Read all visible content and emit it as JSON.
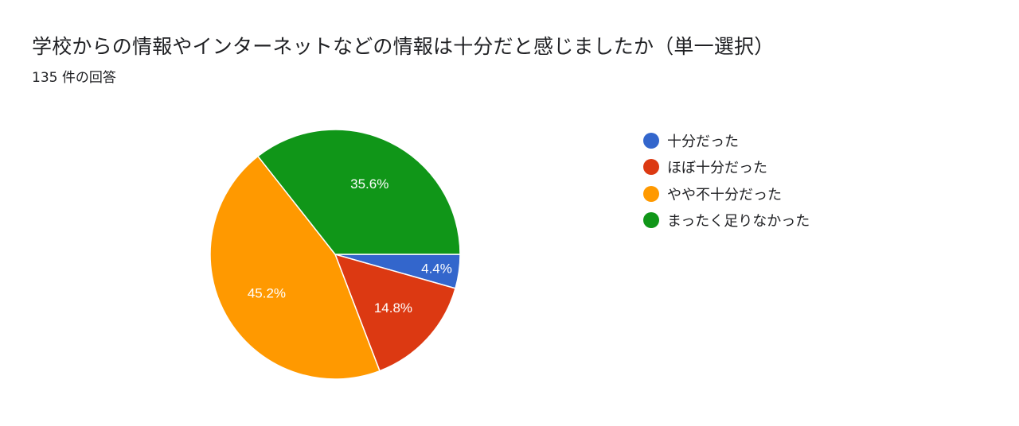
{
  "header": {
    "title": "学校からの情報やインターネットなどの情報は十分だと感じましたか（単一選択）",
    "response_count": "135 件の回答"
  },
  "legend": {
    "items": [
      {
        "label": "十分だった",
        "color": "#3366cc"
      },
      {
        "label": "ほぼ十分だった",
        "color": "#dc3912"
      },
      {
        "label": "やや不十分だった",
        "color": "#ff9900"
      },
      {
        "label": "まったく足りなかった",
        "color": "#109618"
      }
    ]
  },
  "slices": [
    {
      "label": "十分だった",
      "value": 4.4,
      "text": "4.4%",
      "color": "#3366cc"
    },
    {
      "label": "ほぼ十分だった",
      "value": 14.8,
      "text": "14.8%",
      "color": "#dc3912"
    },
    {
      "label": "やや不十分だった",
      "value": 45.2,
      "text": "45.2%",
      "color": "#ff9900"
    },
    {
      "label": "まったく足りなかった",
      "value": 35.6,
      "text": "35.6%",
      "color": "#109618"
    }
  ],
  "chart_data": {
    "type": "pie",
    "title": "学校からの情報やインターネットなどの情報は十分だと感じましたか（単一選択）",
    "subtitle": "135 件の回答",
    "categories": [
      "十分だった",
      "ほぼ十分だった",
      "やや不十分だった",
      "まったく足りなかった"
    ],
    "values": [
      4.4,
      14.8,
      45.2,
      35.6
    ],
    "unit": "%",
    "colors": [
      "#3366cc",
      "#dc3912",
      "#ff9900",
      "#109618"
    ],
    "legend_position": "right",
    "start_angle": "3 o'clock, clockwise"
  }
}
